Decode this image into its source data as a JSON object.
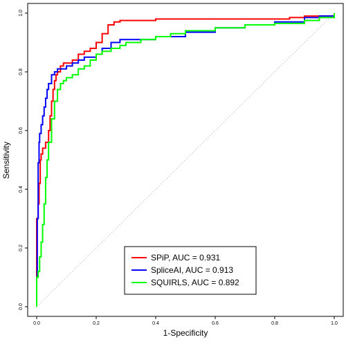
{
  "chart_data": {
    "type": "line",
    "title": "",
    "xlabel": "1-Specificity",
    "ylabel": "Sensitivity",
    "xlim": [
      0,
      1
    ],
    "ylim": [
      0,
      1
    ],
    "xticks": [
      "0.0",
      "0.2",
      "0.4",
      "0.6",
      "0.8",
      "1.0"
    ],
    "yticks": [
      "0.0",
      "0.2",
      "0.4",
      "0.6",
      "0.8",
      "1.0"
    ],
    "grid": false,
    "legend_position": "bottom-center",
    "reference_line": {
      "style": "dotted",
      "color": "#bfbfbf",
      "from": [
        0,
        0
      ],
      "to": [
        1,
        1
      ]
    },
    "series": [
      {
        "name": "SPiP, AUC = 0.931",
        "color": "#ff0000",
        "x": [
          0.0,
          0.0,
          0.005,
          0.008,
          0.012,
          0.015,
          0.02,
          0.03,
          0.04,
          0.045,
          0.05,
          0.055,
          0.06,
          0.065,
          0.07,
          0.08,
          0.09,
          0.1,
          0.12,
          0.14,
          0.16,
          0.18,
          0.2,
          0.22,
          0.24,
          0.26,
          0.28,
          0.3,
          0.35,
          0.4,
          0.5,
          0.6,
          0.7,
          0.8,
          0.85,
          0.9,
          0.95,
          1.0
        ],
        "y": [
          0.0,
          0.3,
          0.35,
          0.42,
          0.5,
          0.52,
          0.54,
          0.56,
          0.6,
          0.65,
          0.7,
          0.74,
          0.77,
          0.79,
          0.8,
          0.82,
          0.83,
          0.83,
          0.84,
          0.86,
          0.87,
          0.88,
          0.9,
          0.93,
          0.96,
          0.97,
          0.975,
          0.975,
          0.975,
          0.98,
          0.98,
          0.98,
          0.98,
          0.98,
          0.985,
          0.99,
          0.99,
          1.0
        ]
      },
      {
        "name": "SpliceAI, AUC = 0.913",
        "color": "#0000ff",
        "x": [
          0.0,
          0.0,
          0.002,
          0.005,
          0.008,
          0.01,
          0.015,
          0.02,
          0.025,
          0.03,
          0.035,
          0.04,
          0.05,
          0.06,
          0.07,
          0.08,
          0.1,
          0.12,
          0.14,
          0.16,
          0.18,
          0.2,
          0.22,
          0.25,
          0.28,
          0.3,
          0.35,
          0.4,
          0.5,
          0.6,
          0.7,
          0.8,
          0.9,
          0.95,
          1.0
        ],
        "y": [
          0.0,
          0.1,
          0.3,
          0.49,
          0.56,
          0.59,
          0.62,
          0.65,
          0.68,
          0.71,
          0.74,
          0.76,
          0.79,
          0.8,
          0.81,
          0.81,
          0.82,
          0.83,
          0.84,
          0.85,
          0.85,
          0.86,
          0.88,
          0.9,
          0.91,
          0.91,
          0.91,
          0.92,
          0.935,
          0.95,
          0.96,
          0.97,
          0.985,
          0.99,
          1.0
        ]
      },
      {
        "name": "SQUIRLS, AUC = 0.892",
        "color": "#00ff00",
        "x": [
          0.0,
          0.0,
          0.005,
          0.01,
          0.015,
          0.02,
          0.025,
          0.03,
          0.035,
          0.04,
          0.05,
          0.06,
          0.07,
          0.08,
          0.09,
          0.1,
          0.12,
          0.14,
          0.16,
          0.18,
          0.2,
          0.22,
          0.25,
          0.28,
          0.3,
          0.35,
          0.4,
          0.45,
          0.5,
          0.6,
          0.7,
          0.8,
          0.85,
          0.9,
          0.95,
          1.0
        ],
        "y": [
          0.0,
          0.1,
          0.12,
          0.17,
          0.22,
          0.28,
          0.35,
          0.44,
          0.5,
          0.56,
          0.64,
          0.7,
          0.74,
          0.76,
          0.77,
          0.78,
          0.79,
          0.81,
          0.82,
          0.84,
          0.86,
          0.87,
          0.88,
          0.89,
          0.9,
          0.91,
          0.92,
          0.93,
          0.94,
          0.95,
          0.96,
          0.965,
          0.965,
          0.975,
          0.985,
          1.0
        ]
      }
    ]
  }
}
